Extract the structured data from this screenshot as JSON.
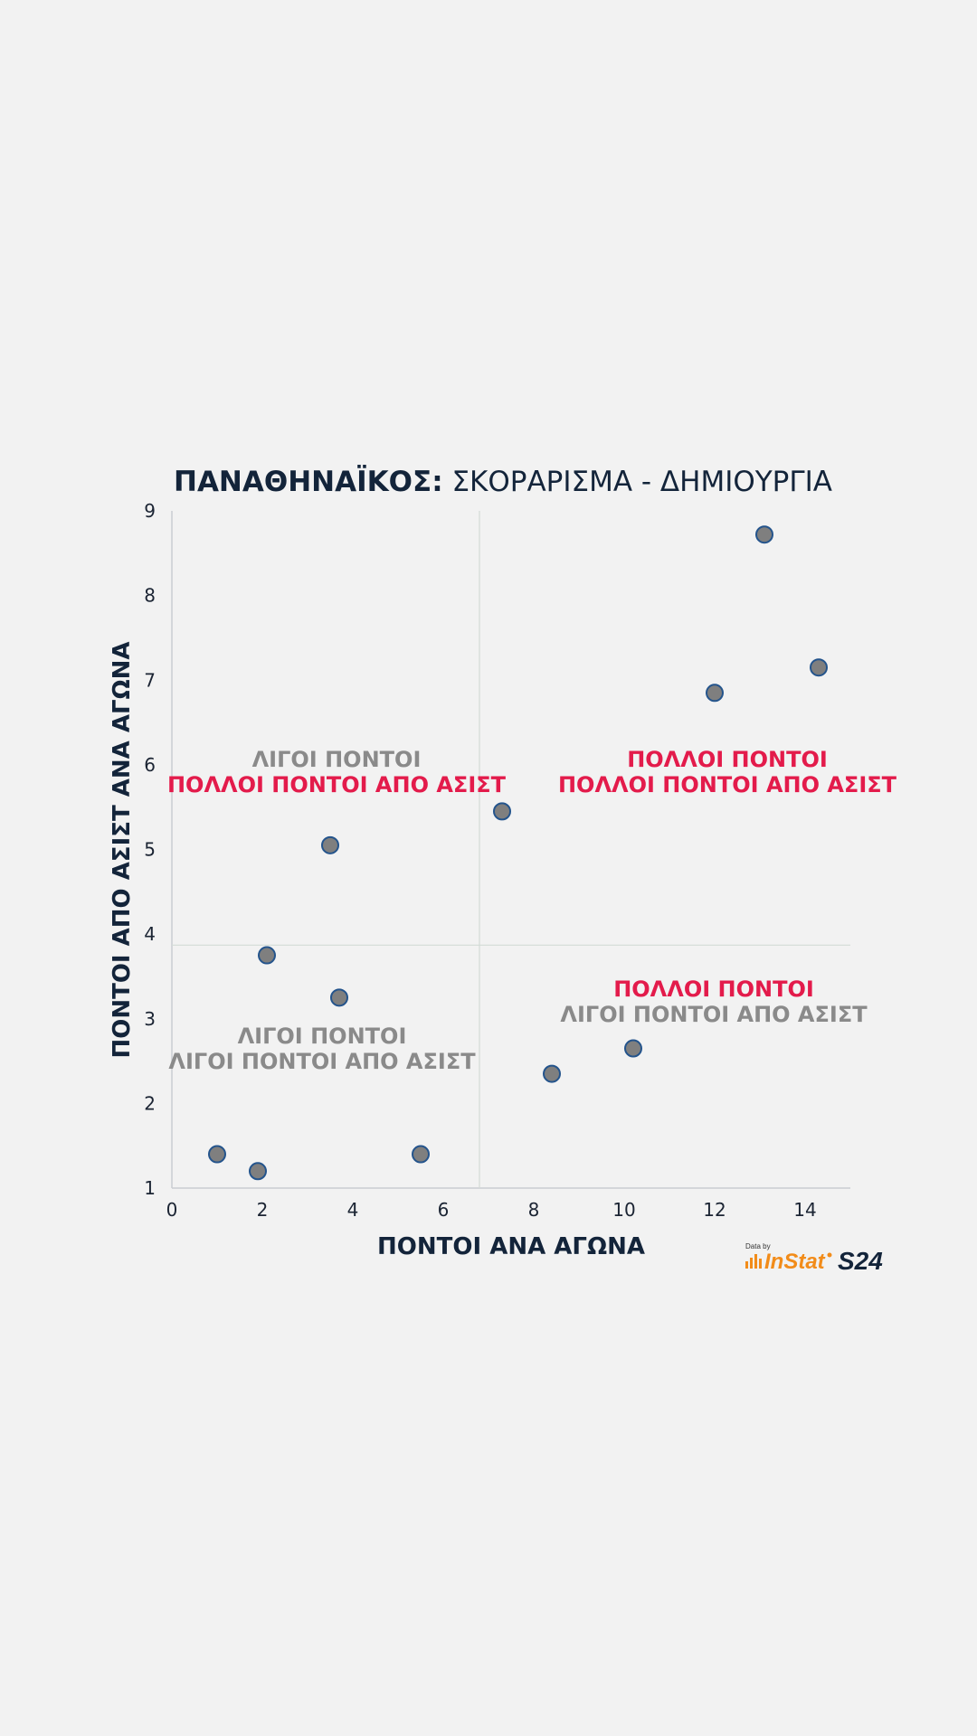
{
  "colors": {
    "background": "#f2f2f2",
    "navy": "#13243a",
    "red": "#e31b4b",
    "gray_text": "#8a8a8a",
    "point_fill": "#7f7f7f",
    "point_stroke": "#24548c",
    "divider": "#d3dcd6",
    "instat_orange": "#f28c1a"
  },
  "chart_data": {
    "type": "scatter",
    "title_bold": "ΠΑΝΑΘΗΝΑΪΚΟΣ:",
    "title_rest": " ΣΚΟΡΑΡΙΣΜΑ - ΔΗΜΙΟΥΡΓΙΑ",
    "xlabel": "ΠΟΝΤΟΙ ΑΝΑ ΑΓΩΝΑ",
    "ylabel": "ΠΟΝΤΟΙ ΑΠΟ ΑΣΙΣΤ ΑΝΑ ΑΓΩΝΑ",
    "xlim": [
      0,
      15
    ],
    "ylim": [
      1,
      9
    ],
    "xticks": [
      0,
      2,
      4,
      6,
      8,
      10,
      12,
      14
    ],
    "yticks": [
      1,
      2,
      3,
      4,
      5,
      6,
      7,
      8,
      9
    ],
    "x_divider": 6.8,
    "y_divider": 3.87,
    "points": [
      {
        "x": 1.0,
        "y": 1.4
      },
      {
        "x": 1.9,
        "y": 1.2
      },
      {
        "x": 2.1,
        "y": 3.75
      },
      {
        "x": 3.5,
        "y": 5.05
      },
      {
        "x": 3.7,
        "y": 3.25
      },
      {
        "x": 5.5,
        "y": 1.4
      },
      {
        "x": 7.3,
        "y": 5.45
      },
      {
        "x": 8.4,
        "y": 2.35
      },
      {
        "x": 10.2,
        "y": 2.65
      },
      {
        "x": 12.0,
        "y": 6.85
      },
      {
        "x": 13.1,
        "y": 8.72
      },
      {
        "x": 14.3,
        "y": 7.15
      }
    ],
    "quadrant_labels": {
      "top_left": {
        "line1": "ΛΙΓΟΙ ΠΟΝΤΟΙ",
        "line2": "ΠΟΛΛΟΙ ΠΟΝΤΟΙ ΑΠΟ ΑΣΙΣΤ"
      },
      "top_right": {
        "line1": "ΠΟΛΛΟΙ ΠΟΝΤΟΙ",
        "line2": "ΠΟΛΛΟΙ ΠΟΝΤΟΙ ΑΠΟ ΑΣΙΣΤ"
      },
      "bottom_left": {
        "line1": "ΛΙΓΟΙ ΠΟΝΤΟΙ",
        "line2": "ΛΙΓΟΙ ΠΟΝΤΟΙ ΑΠΟ ΑΣΙΣΤ"
      },
      "bottom_right": {
        "line1": "ΠΟΛΛΟΙ ΠΟΝΤΟΙ",
        "line2": "ΛΙΓΟΙ ΠΟΝΤΟΙ ΑΠΟ ΑΣΙΣΤ"
      }
    }
  },
  "logos": {
    "data_by": "Data by",
    "instat": "InStat",
    "s24": "S24"
  }
}
